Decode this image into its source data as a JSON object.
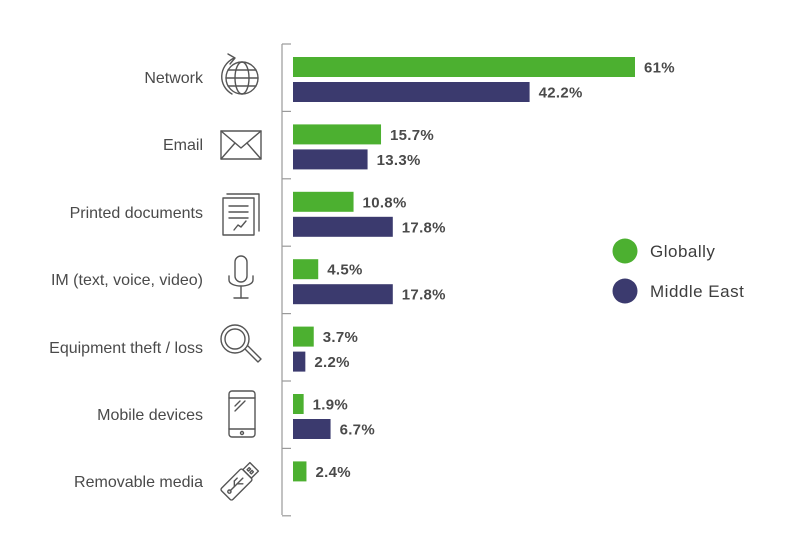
{
  "chart_data": {
    "type": "bar",
    "orientation": "horizontal",
    "categories": [
      "Network",
      "Email",
      "Printed documents",
      "IM (text, voice, video)",
      "Equipment theft / loss",
      "Mobile devices",
      "Removable media"
    ],
    "category_icons": [
      "globe-arrow-icon",
      "envelope-icon",
      "documents-icon",
      "microphone-icon",
      "magnifier-icon",
      "smartphone-icon",
      "usb-drive-icon"
    ],
    "series": [
      {
        "name": "Globally",
        "color": "#4cb030",
        "values": [
          61,
          15.7,
          10.8,
          4.5,
          3.7,
          1.9,
          2.4
        ],
        "labels": [
          "61%",
          "15.7%",
          "10.8%",
          "4.5%",
          "3.7%",
          "1.9%",
          "2.4%"
        ]
      },
      {
        "name": "Middle East",
        "color": "#3b3a6e",
        "values": [
          42.2,
          13.3,
          17.8,
          17.8,
          2.2,
          6.7,
          null
        ],
        "labels": [
          "42.2%",
          "13.3%",
          "17.8%",
          "17.8%",
          "2.2%",
          "6.7%",
          ""
        ]
      }
    ],
    "xlim": [
      0,
      61
    ],
    "legend_position": "right",
    "grid": false
  }
}
